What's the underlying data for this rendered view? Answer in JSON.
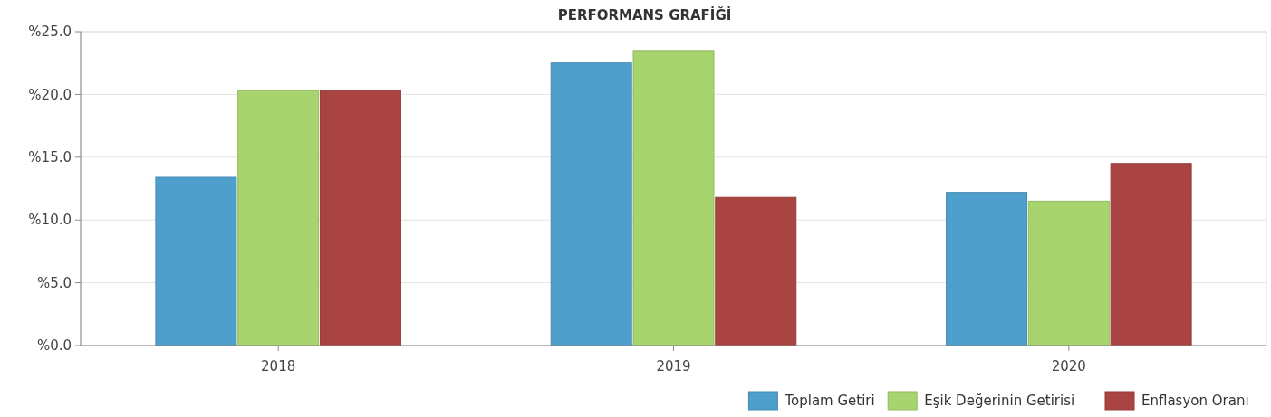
{
  "chart_data": {
    "type": "bar",
    "title": "PERFORMANS GRAFİĞİ",
    "categories": [
      "2018",
      "2019",
      "2020"
    ],
    "series": [
      {
        "name": "Toplam Getiri",
        "color": "#4f9fcd",
        "values": [
          13.4,
          22.5,
          12.2
        ]
      },
      {
        "name": "Eşik Değerinin Getirisi",
        "color": "#a8d46f",
        "values": [
          20.3,
          23.5,
          11.5
        ]
      },
      {
        "name": "Enflasyon Oranı",
        "color": "#a94442",
        "values": [
          20.3,
          11.8,
          14.5
        ]
      }
    ],
    "ylim": [
      0,
      25
    ],
    "yticks": [
      {
        "value": 0,
        "label": "%0.0"
      },
      {
        "value": 5,
        "label": "%5.0"
      },
      {
        "value": 10,
        "label": "%10.0"
      },
      {
        "value": 15,
        "label": "%15.0"
      },
      {
        "value": 20,
        "label": "%20.0"
      },
      {
        "value": 25,
        "label": "%25.0"
      }
    ],
    "grid": "y",
    "legend": "bottom right"
  }
}
